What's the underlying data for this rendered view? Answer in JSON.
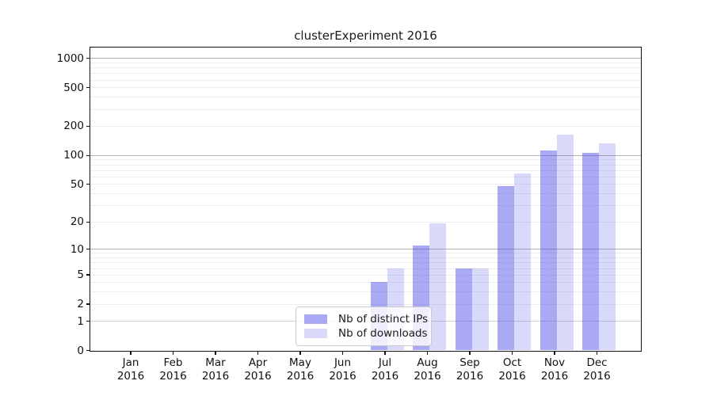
{
  "chart_data": {
    "type": "bar",
    "title": "clusterExperiment 2016",
    "categories": [
      "Jan 2016",
      "Feb 2016",
      "Mar 2016",
      "Apr 2016",
      "May 2016",
      "Jun 2016",
      "Jul 2016",
      "Aug 2016",
      "Sep 2016",
      "Oct 2016",
      "Nov 2016",
      "Dec 2016"
    ],
    "series": [
      {
        "name": "Nb of distinct IPs",
        "color": "rgba(64,64,230,0.45)",
        "values": [
          0,
          0,
          0,
          0,
          0,
          0,
          4,
          11,
          6,
          48,
          112,
          105
        ]
      },
      {
        "name": "Nb of downloads",
        "color": "rgba(64,64,230,0.20)",
        "values": [
          0,
          0,
          0,
          0,
          0,
          0,
          6,
          19,
          6,
          64,
          164,
          133
        ]
      }
    ],
    "y_axis": {
      "scale": "log1p",
      "ticks": [
        0,
        1,
        2,
        5,
        10,
        20,
        50,
        100,
        200,
        500,
        1000
      ],
      "tick_labels": [
        "0",
        "1",
        "2",
        "5",
        "10",
        "20",
        "50",
        "100",
        "200",
        "500",
        "1000"
      ],
      "ylim": [
        0,
        1300
      ]
    },
    "x_axis": {
      "tick_label_lines": 2
    },
    "grid": {
      "major_lines": [
        10,
        100,
        1000
      ],
      "unit_line": 1,
      "minor_lines": "2-9 per decade",
      "on": true
    },
    "legend": {
      "position": "lower-center-inside",
      "entries": [
        "Nb of distinct IPs",
        "Nb of downloads"
      ]
    },
    "background": "#ffffff"
  }
}
